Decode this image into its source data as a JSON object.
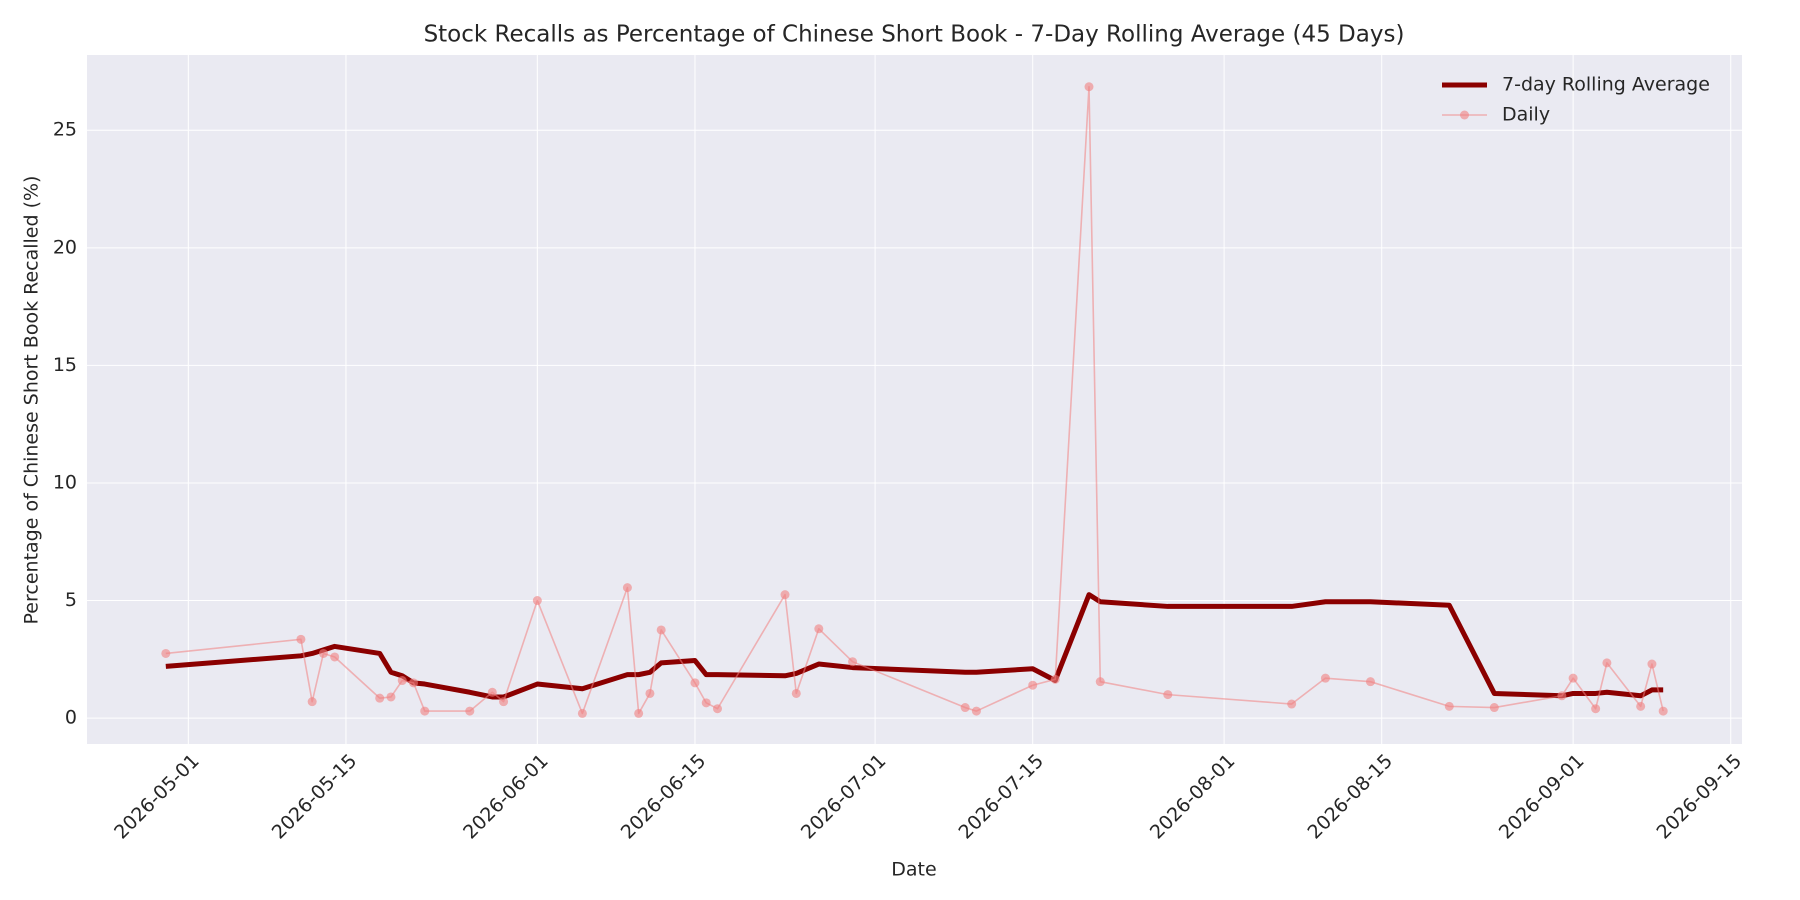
{
  "chart_data": {
    "type": "line",
    "title": "Stock Recalls as Percentage of Chinese Short Book - 7-Day Rolling Average (45 Days)",
    "x_label": "Date",
    "y_label": "Percentage of Chinese Short Book Recalled (%)",
    "x": [
      "2026-04-29",
      "2026-05-11",
      "2026-05-12",
      "2026-05-13",
      "2026-05-14",
      "2026-05-18",
      "2026-05-19",
      "2026-05-20",
      "2026-05-21",
      "2026-05-22",
      "2026-05-26",
      "2026-05-28",
      "2026-05-29",
      "2026-06-01",
      "2026-06-05",
      "2026-06-09",
      "2026-06-10",
      "2026-06-11",
      "2026-06-12",
      "2026-06-15",
      "2026-06-16",
      "2026-06-17",
      "2026-06-23",
      "2026-06-24",
      "2026-06-26",
      "2026-06-29",
      "2026-07-09",
      "2026-07-10",
      "2026-07-15",
      "2026-07-17",
      "2026-07-20",
      "2026-07-21",
      "2026-07-27",
      "2026-08-07",
      "2026-08-10",
      "2026-08-14",
      "2026-08-21",
      "2026-08-25",
      "2026-08-31",
      "2026-09-01",
      "2026-09-03",
      "2026-09-04",
      "2026-09-07",
      "2026-09-08",
      "2026-09-09"
    ],
    "series": [
      {
        "name": "7-day Rolling Average",
        "color": "#8b0000",
        "values": [
          2.2,
          2.65,
          2.75,
          2.9,
          3.05,
          2.75,
          1.95,
          1.8,
          1.5,
          1.45,
          1.1,
          0.9,
          0.9,
          1.45,
          1.25,
          1.85,
          1.85,
          1.95,
          2.35,
          2.45,
          1.85,
          1.85,
          1.8,
          1.9,
          2.3,
          2.15,
          1.95,
          1.95,
          2.1,
          1.6,
          5.25,
          4.95,
          4.75,
          4.75,
          4.95,
          4.95,
          4.8,
          1.05,
          0.95,
          1.05,
          1.05,
          1.1,
          0.95,
          1.2,
          1.2
        ]
      },
      {
        "name": "Daily",
        "color": "#f08080",
        "markers": true,
        "values": [
          2.75,
          3.35,
          0.7,
          2.75,
          2.6,
          0.85,
          0.9,
          1.6,
          1.5,
          0.3,
          0.3,
          1.1,
          0.7,
          5.0,
          0.2,
          5.55,
          0.2,
          1.05,
          3.75,
          1.5,
          0.65,
          0.4,
          5.25,
          1.05,
          3.8,
          2.4,
          0.45,
          0.3,
          1.4,
          1.65,
          26.85,
          1.55,
          1.0,
          0.6,
          1.7,
          1.55,
          0.5,
          0.45,
          0.95,
          1.7,
          0.4,
          2.35,
          0.5,
          2.3,
          0.3
        ]
      }
    ],
    "xlim": [
      "2026-04-22",
      "2026-09-16"
    ],
    "xticks": [
      "2026-05-01",
      "2026-05-15",
      "2026-06-01",
      "2026-06-15",
      "2026-07-01",
      "2026-07-15",
      "2026-08-01",
      "2026-08-15",
      "2026-09-01",
      "2026-09-15"
    ],
    "ylim": [
      -1.1,
      28.2
    ],
    "yticks": [
      0,
      5,
      10,
      15,
      20,
      25
    ],
    "grid": true,
    "legend": "upper right"
  }
}
